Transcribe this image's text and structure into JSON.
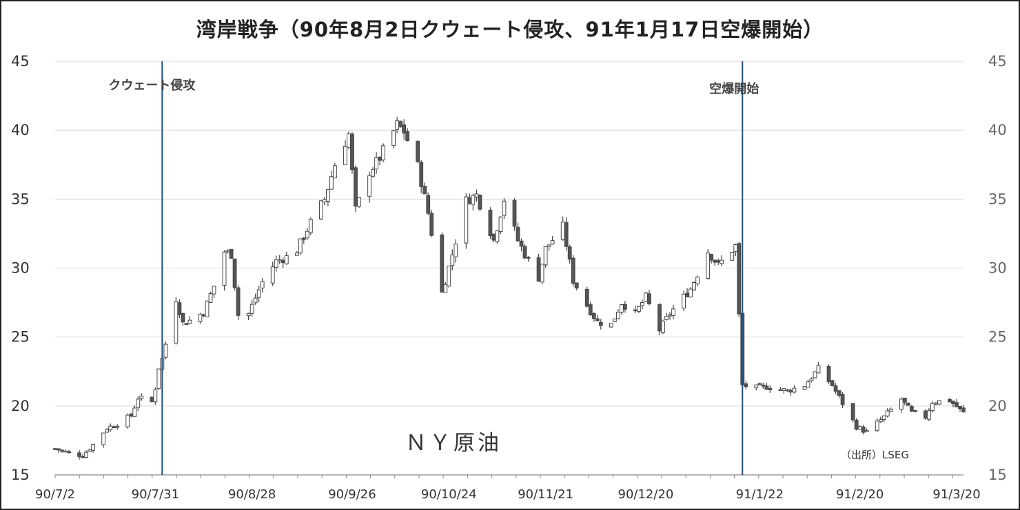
{
  "chart_data": {
    "type": "candlestick",
    "title": "湾岸戦争（90年8月2日クウェート侵攻、91年1月17日空爆開始）",
    "series_label": "ＮＹ原油",
    "source": "（出所）LSEG",
    "ylim": [
      15,
      45
    ],
    "y_ticks": [
      45,
      40,
      35,
      30,
      25,
      20,
      15
    ],
    "x_tick_labels": [
      "90/7/2",
      "90/7/31",
      "90/8/28",
      "90/9/26",
      "90/10/24",
      "90/11/21",
      "90/12/20",
      "91/1/22",
      "91/2/20",
      "91/3/20"
    ],
    "x_tick_dates": [
      "1990-07-02",
      "1990-07-31",
      "1990-08-28",
      "1990-09-26",
      "1990-10-24",
      "1990-11-21",
      "1990-12-20",
      "1991-01-22",
      "1991-02-20",
      "1991-03-20"
    ],
    "x_range": [
      "1990-07-02",
      "1991-03-22"
    ],
    "grid": "horizontal",
    "events": [
      {
        "label": "クウェート侵攻",
        "date": "1990-08-02"
      },
      {
        "label": "空爆開始",
        "date": "1991-01-17"
      }
    ],
    "colors": {
      "up": "#ffffff",
      "down": "#555555",
      "wick": "#444444",
      "event_line": "#1f4e79",
      "grid": "#d9d9d9"
    },
    "close_path": [
      [
        "1990-07-02",
        16.9
      ],
      [
        "1990-07-06",
        16.6
      ],
      [
        "1990-07-10",
        16.4
      ],
      [
        "1990-07-13",
        17.2
      ],
      [
        "1990-07-17",
        18.4
      ],
      [
        "1990-07-20",
        18.7
      ],
      [
        "1990-07-24",
        19.3
      ],
      [
        "1990-07-26",
        20.6
      ],
      [
        "1990-07-30",
        20.3
      ],
      [
        "1990-07-31",
        21.3
      ],
      [
        "1990-08-01",
        22.8
      ],
      [
        "1990-08-02",
        23.4
      ],
      [
        "1990-08-03",
        24.5
      ],
      [
        "1990-08-06",
        27.8
      ],
      [
        "1990-08-08",
        26.0
      ],
      [
        "1990-08-10",
        26.2
      ],
      [
        "1990-08-14",
        26.8
      ],
      [
        "1990-08-17",
        28.7
      ],
      [
        "1990-08-20",
        31.2
      ],
      [
        "1990-08-22",
        31.0
      ],
      [
        "1990-08-24",
        26.6
      ],
      [
        "1990-08-27",
        26.7
      ],
      [
        "1990-08-31",
        29.0
      ],
      [
        "1990-09-04",
        30.5
      ],
      [
        "1990-09-07",
        30.8
      ],
      [
        "1990-09-10",
        31.3
      ],
      [
        "1990-09-14",
        33.3
      ],
      [
        "1990-09-18",
        35.0
      ],
      [
        "1990-09-21",
        37.5
      ],
      [
        "1990-09-25",
        39.7
      ],
      [
        "1990-09-27",
        34.2
      ],
      [
        "1990-10-01",
        37.0
      ],
      [
        "1990-10-04",
        38.0
      ],
      [
        "1990-10-09",
        40.4
      ],
      [
        "1990-10-11",
        39.9
      ],
      [
        "1990-10-15",
        37.4
      ],
      [
        "1990-10-18",
        34.0
      ],
      [
        "1990-10-22",
        28.2
      ],
      [
        "1990-10-25",
        31.0
      ],
      [
        "1990-10-29",
        34.9
      ],
      [
        "1990-11-01",
        35.3
      ],
      [
        "1990-11-06",
        32.0
      ],
      [
        "1990-11-09",
        35.0
      ],
      [
        "1990-11-13",
        32.0
      ],
      [
        "1990-11-15",
        31.0
      ],
      [
        "1990-11-19",
        29.3
      ],
      [
        "1990-11-21",
        31.4
      ],
      [
        "1990-11-26",
        33.0
      ],
      [
        "1990-11-29",
        29.1
      ],
      [
        "1990-12-03",
        27.3
      ],
      [
        "1990-12-06",
        26.1
      ],
      [
        "1990-12-10",
        25.9
      ],
      [
        "1990-12-13",
        27.5
      ],
      [
        "1990-12-17",
        26.7
      ],
      [
        "1990-12-20",
        27.9
      ],
      [
        "1990-12-24",
        25.5
      ],
      [
        "1990-12-27",
        26.7
      ],
      [
        "1991-01-02",
        28.5
      ],
      [
        "1991-01-07",
        31.2
      ],
      [
        "1991-01-10",
        30.2
      ],
      [
        "1991-01-15",
        31.6
      ],
      [
        "1991-01-17",
        21.5
      ],
      [
        "1991-01-21",
        21.3
      ],
      [
        "1991-01-24",
        21.4
      ],
      [
        "1991-01-30",
        21.1
      ],
      [
        "1991-02-04",
        21.5
      ],
      [
        "1991-02-08",
        22.7
      ],
      [
        "1991-02-12",
        21.5
      ],
      [
        "1991-02-15",
        20.2
      ],
      [
        "1991-02-19",
        18.5
      ],
      [
        "1991-02-22",
        18.1
      ],
      [
        "1991-02-27",
        19.2
      ],
      [
        "1991-03-04",
        20.5
      ],
      [
        "1991-03-07",
        19.5
      ],
      [
        "1991-03-11",
        19.2
      ],
      [
        "1991-03-13",
        20.3
      ],
      [
        "1991-03-18",
        20.4
      ],
      [
        "1991-03-22",
        19.5
      ]
    ]
  }
}
